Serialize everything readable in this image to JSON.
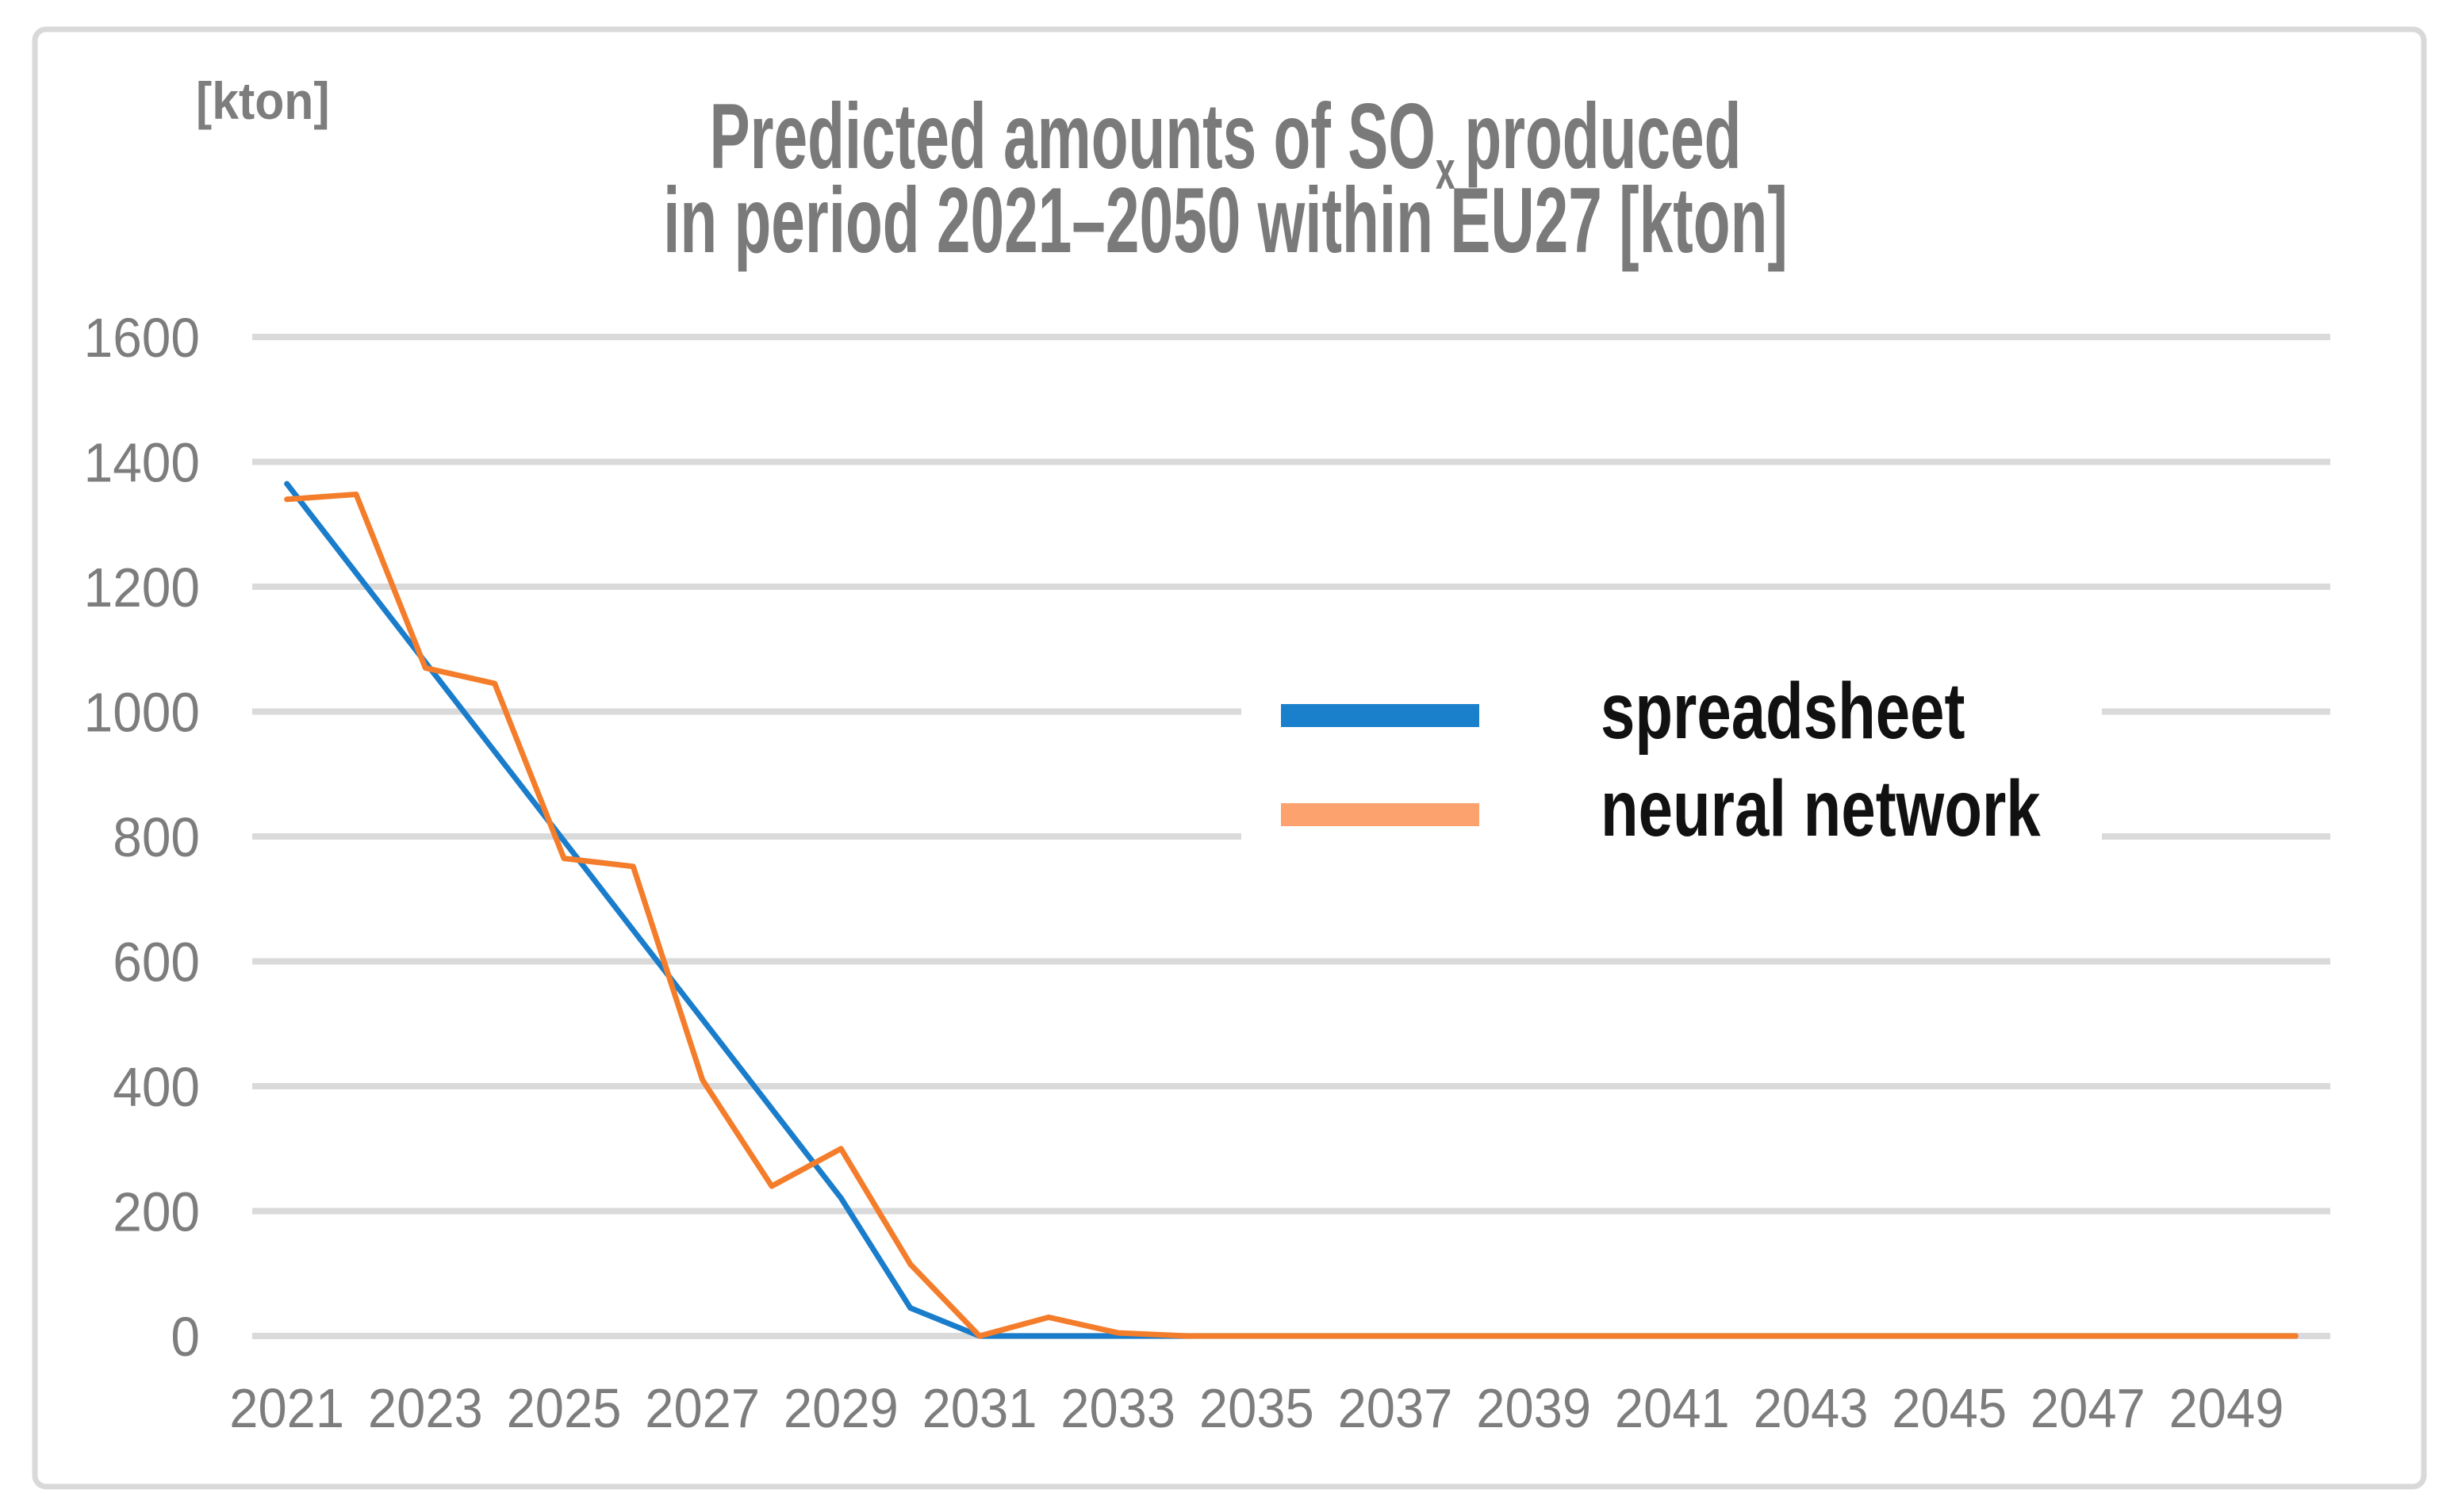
{
  "title": {
    "line1_pre": "Predicted amounts of SO",
    "line1_sub": "x",
    "line1_post": "produced",
    "line2": "in period 2021–2050 within EU27 [kton]",
    "color": "#7a7a7a"
  },
  "unit_label": "[kton]",
  "legend": {
    "items": [
      {
        "label": "spreadsheet",
        "swatch_color": "#1b80cc"
      },
      {
        "label": "neural network",
        "swatch_color": "#fba26e"
      }
    ],
    "text_color": "#111111"
  },
  "colors": {
    "grid": "#dadada",
    "frame_border": "#d9d9d9",
    "axis_text": "#7d7d7d",
    "background": "#ffffff"
  },
  "chart_data": {
    "type": "line",
    "title": "Predicted amounts of SOx produced in period 2021–2050 within EU27 [kton]",
    "xlabel": "",
    "ylabel": "[kton]",
    "ylim": [
      0,
      1600
    ],
    "y_ticks": [
      0,
      200,
      400,
      600,
      800,
      1000,
      1200,
      1400,
      1600
    ],
    "grid": true,
    "legend_position": "center-right",
    "x": [
      2021,
      2022,
      2023,
      2024,
      2025,
      2026,
      2027,
      2028,
      2029,
      2030,
      2031,
      2032,
      2033,
      2034,
      2035,
      2036,
      2037,
      2038,
      2039,
      2040,
      2041,
      2042,
      2043,
      2044,
      2045,
      2046,
      2047,
      2048,
      2049,
      2050
    ],
    "x_tick_labels": [
      "2021",
      "2023",
      "2025",
      "2027",
      "2029",
      "2031",
      "2033",
      "2035",
      "2037",
      "2039",
      "2041",
      "2043",
      "2045",
      "2047",
      "2049"
    ],
    "series": [
      {
        "name": "spreadsheet",
        "color": "#1a7dcb",
        "values": [
          1365,
          1222,
          1079,
          936,
          793,
          650,
          507,
          364,
          221,
          45,
          0,
          0,
          0,
          0,
          0,
          0,
          0,
          0,
          0,
          0,
          0,
          0,
          0,
          0,
          0,
          0,
          0,
          0,
          0,
          0
        ]
      },
      {
        "name": "neural network",
        "color": "#f47d2b",
        "legend_swatch_color": "#fba26e",
        "values": [
          1340,
          1348,
          1070,
          1045,
          765,
          752,
          410,
          240,
          300,
          115,
          0,
          30,
          5,
          0,
          0,
          0,
          0,
          0,
          0,
          0,
          0,
          0,
          0,
          0,
          0,
          0,
          0,
          0,
          0,
          0
        ]
      }
    ]
  }
}
